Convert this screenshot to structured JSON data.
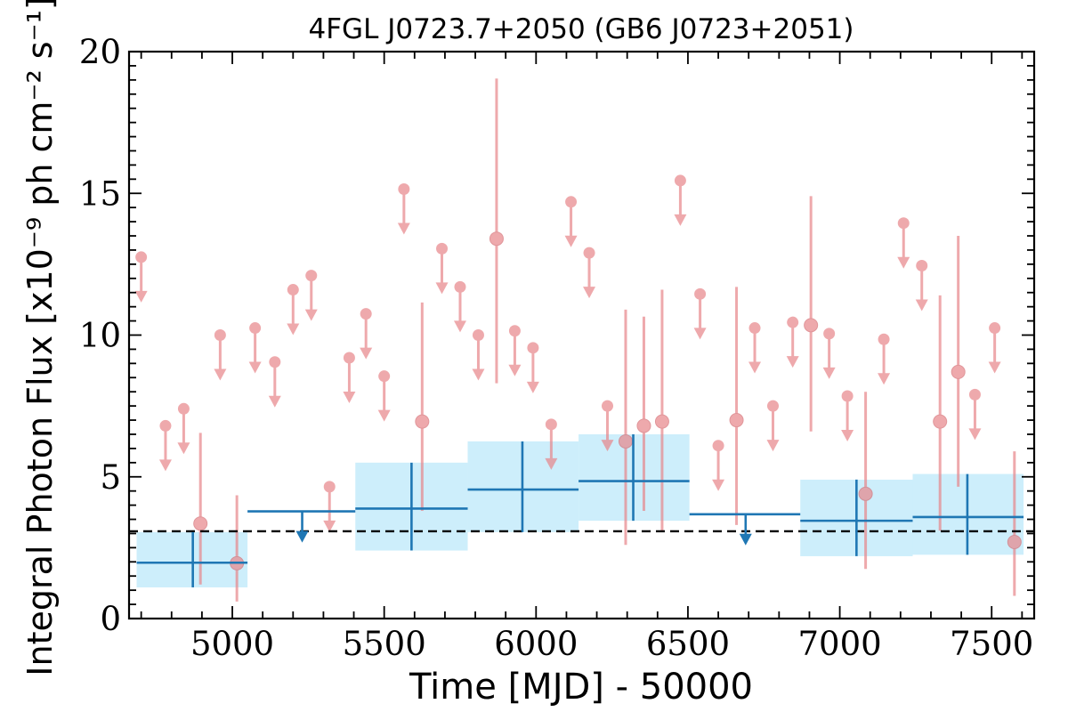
{
  "chart_data": {
    "type": "scatter",
    "title": "4FGL J0723.7+2050 (GB6 J0723+2051)",
    "xlabel": "Time [MJD] - 50000",
    "ylabel": "Integral Photon Flux [x10⁻⁹ ph cm⁻² s⁻¹]",
    "xlim": [
      4660,
      7640
    ],
    "ylim": [
      0,
      20
    ],
    "xticks": [
      5000,
      5500,
      6000,
      6500,
      7000,
      7500
    ],
    "yticks": [
      0,
      5,
      10,
      15,
      20
    ],
    "grid": false,
    "mean_flux": 3.08,
    "colors": {
      "short_bins": "#e8858a",
      "long_bins": "#1f77b4",
      "long_band": "#cdeefb",
      "mean_line": "#000000"
    },
    "series": [
      {
        "role": "short-bin-upper-limits",
        "points": [
          {
            "x": 4700,
            "y": 12.75
          },
          {
            "x": 4780,
            "y": 6.8
          },
          {
            "x": 4840,
            "y": 7.4
          },
          {
            "x": 4960,
            "y": 10.0
          },
          {
            "x": 5075,
            "y": 10.25
          },
          {
            "x": 5140,
            "y": 9.05
          },
          {
            "x": 5200,
            "y": 11.6
          },
          {
            "x": 5260,
            "y": 12.1
          },
          {
            "x": 5320,
            "y": 4.65
          },
          {
            "x": 5385,
            "y": 9.2
          },
          {
            "x": 5440,
            "y": 10.75
          },
          {
            "x": 5500,
            "y": 8.55
          },
          {
            "x": 5565,
            "y": 15.15
          },
          {
            "x": 5690,
            "y": 13.05
          },
          {
            "x": 5750,
            "y": 11.7
          },
          {
            "x": 5810,
            "y": 10.0
          },
          {
            "x": 5930,
            "y": 10.15
          },
          {
            "x": 5990,
            "y": 9.55
          },
          {
            "x": 6050,
            "y": 6.85
          },
          {
            "x": 6115,
            "y": 14.7
          },
          {
            "x": 6175,
            "y": 12.9
          },
          {
            "x": 6235,
            "y": 7.5
          },
          {
            "x": 6475,
            "y": 15.45
          },
          {
            "x": 6540,
            "y": 11.45
          },
          {
            "x": 6600,
            "y": 6.1
          },
          {
            "x": 6720,
            "y": 10.25
          },
          {
            "x": 6780,
            "y": 7.5
          },
          {
            "x": 6845,
            "y": 10.45
          },
          {
            "x": 6965,
            "y": 10.05
          },
          {
            "x": 7025,
            "y": 7.85
          },
          {
            "x": 7145,
            "y": 9.85
          },
          {
            "x": 7210,
            "y": 13.95
          },
          {
            "x": 7270,
            "y": 12.45
          },
          {
            "x": 7445,
            "y": 7.9
          },
          {
            "x": 7510,
            "y": 10.25
          }
        ]
      },
      {
        "role": "short-bin-detections",
        "points": [
          {
            "x": 4895,
            "y": 3.35,
            "ylow": 1.2,
            "yhigh": 6.55
          },
          {
            "x": 5015,
            "y": 1.95,
            "ylow": 0.6,
            "yhigh": 4.35
          },
          {
            "x": 5625,
            "y": 6.95,
            "ylow": 3.8,
            "yhigh": 11.15
          },
          {
            "x": 5870,
            "y": 13.4,
            "ylow": 8.3,
            "yhigh": 19.05
          },
          {
            "x": 6295,
            "y": 6.25,
            "ylow": 2.6,
            "yhigh": 10.9
          },
          {
            "x": 6355,
            "y": 6.8,
            "ylow": 3.8,
            "yhigh": 10.65
          },
          {
            "x": 6415,
            "y": 6.95,
            "ylow": 3.1,
            "yhigh": 11.6
          },
          {
            "x": 6660,
            "y": 7.0,
            "ylow": 3.3,
            "yhigh": 11.7
          },
          {
            "x": 6905,
            "y": 10.35,
            "ylow": 6.6,
            "yhigh": 14.9
          },
          {
            "x": 7085,
            "y": 4.4,
            "ylow": 1.75,
            "yhigh": 8.0
          },
          {
            "x": 7330,
            "y": 6.95,
            "ylow": 3.1,
            "yhigh": 11.4
          },
          {
            "x": 7390,
            "y": 8.7,
            "ylow": 4.65,
            "yhigh": 13.5
          },
          {
            "x": 7575,
            "y": 2.7,
            "ylow": 0.8,
            "yhigh": 5.9
          }
        ]
      },
      {
        "role": "long-bin-detections",
        "points": [
          {
            "x": 4870,
            "xlow": 4685,
            "xhigh": 5050,
            "y": 1.97,
            "ylow": 1.1,
            "yhigh": 3.05
          },
          {
            "x": 5590,
            "xlow": 5405,
            "xhigh": 5775,
            "y": 3.88,
            "ylow": 2.4,
            "yhigh": 5.5
          },
          {
            "x": 5955,
            "xlow": 5775,
            "xhigh": 6140,
            "y": 4.55,
            "ylow": 3.05,
            "yhigh": 6.25
          },
          {
            "x": 6320,
            "xlow": 6140,
            "xhigh": 6505,
            "y": 4.85,
            "ylow": 3.45,
            "yhigh": 6.5
          },
          {
            "x": 7055,
            "xlow": 6870,
            "xhigh": 7240,
            "y": 3.45,
            "ylow": 2.2,
            "yhigh": 4.9
          },
          {
            "x": 7420,
            "xlow": 7240,
            "xhigh": 7605,
            "y": 3.58,
            "ylow": 2.25,
            "yhigh": 5.1
          }
        ]
      },
      {
        "role": "long-bin-upper-limits",
        "points": [
          {
            "x": 5230,
            "xlow": 5050,
            "xhigh": 5405,
            "y": 3.78
          },
          {
            "x": 6690,
            "xlow": 6505,
            "xhigh": 6870,
            "y": 3.68
          }
        ]
      }
    ]
  }
}
